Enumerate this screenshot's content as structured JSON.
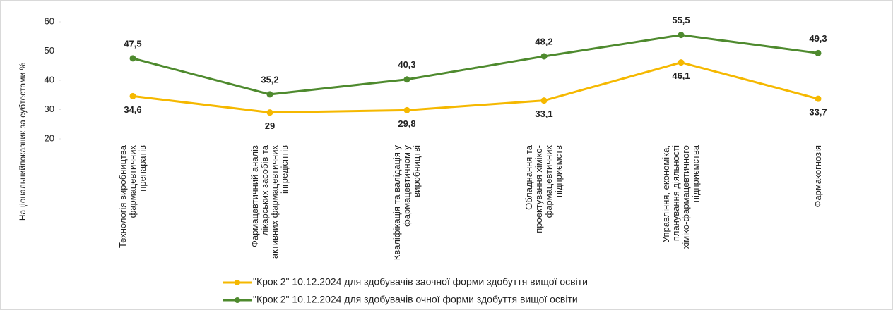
{
  "chart_data": {
    "type": "line",
    "y_label": "Національнийпоказник  за субтестами %",
    "categories": [
      "Технологія виробництва фармацевтичних препаратів",
      "Фармацевтичний аналіз лікарських засобів та активних фармацевтичних інгредієнтів",
      "Кваліфікація та валідація у фармацевтичном у виробництві",
      "Обладнання та проектування хіміко-фармацевтичних підприємств",
      "Управління, економіка, планування діяльності хіміко-фармацевтичного підприємства",
      "Фармакогнозія"
    ],
    "series": [
      {
        "name": "\"Крок 2\" 10.12.2024 для здобувачів заочної форми здобуття вищої освіти",
        "color": "#f5b800",
        "values": [
          34.6,
          29,
          29.8,
          33.1,
          46.1,
          33.7
        ],
        "value_labels": [
          "34,6",
          "29",
          "29,8",
          "33,1",
          "46,1",
          "33,7"
        ]
      },
      {
        "name": "\"Крок 2\" 10.12.2024 для здобувачів очної форми здобуття вищої освіти",
        "color": "#4e8a2e",
        "values": [
          47.5,
          35.2,
          40.3,
          48.2,
          55.5,
          49.3
        ],
        "value_labels": [
          "47,5",
          "35,2",
          "40,3",
          "48,2",
          "55,5",
          "49,3"
        ]
      }
    ],
    "ylim": [
      20,
      60
    ],
    "yticks": [
      20,
      30,
      40,
      50,
      60
    ],
    "grid": false
  }
}
